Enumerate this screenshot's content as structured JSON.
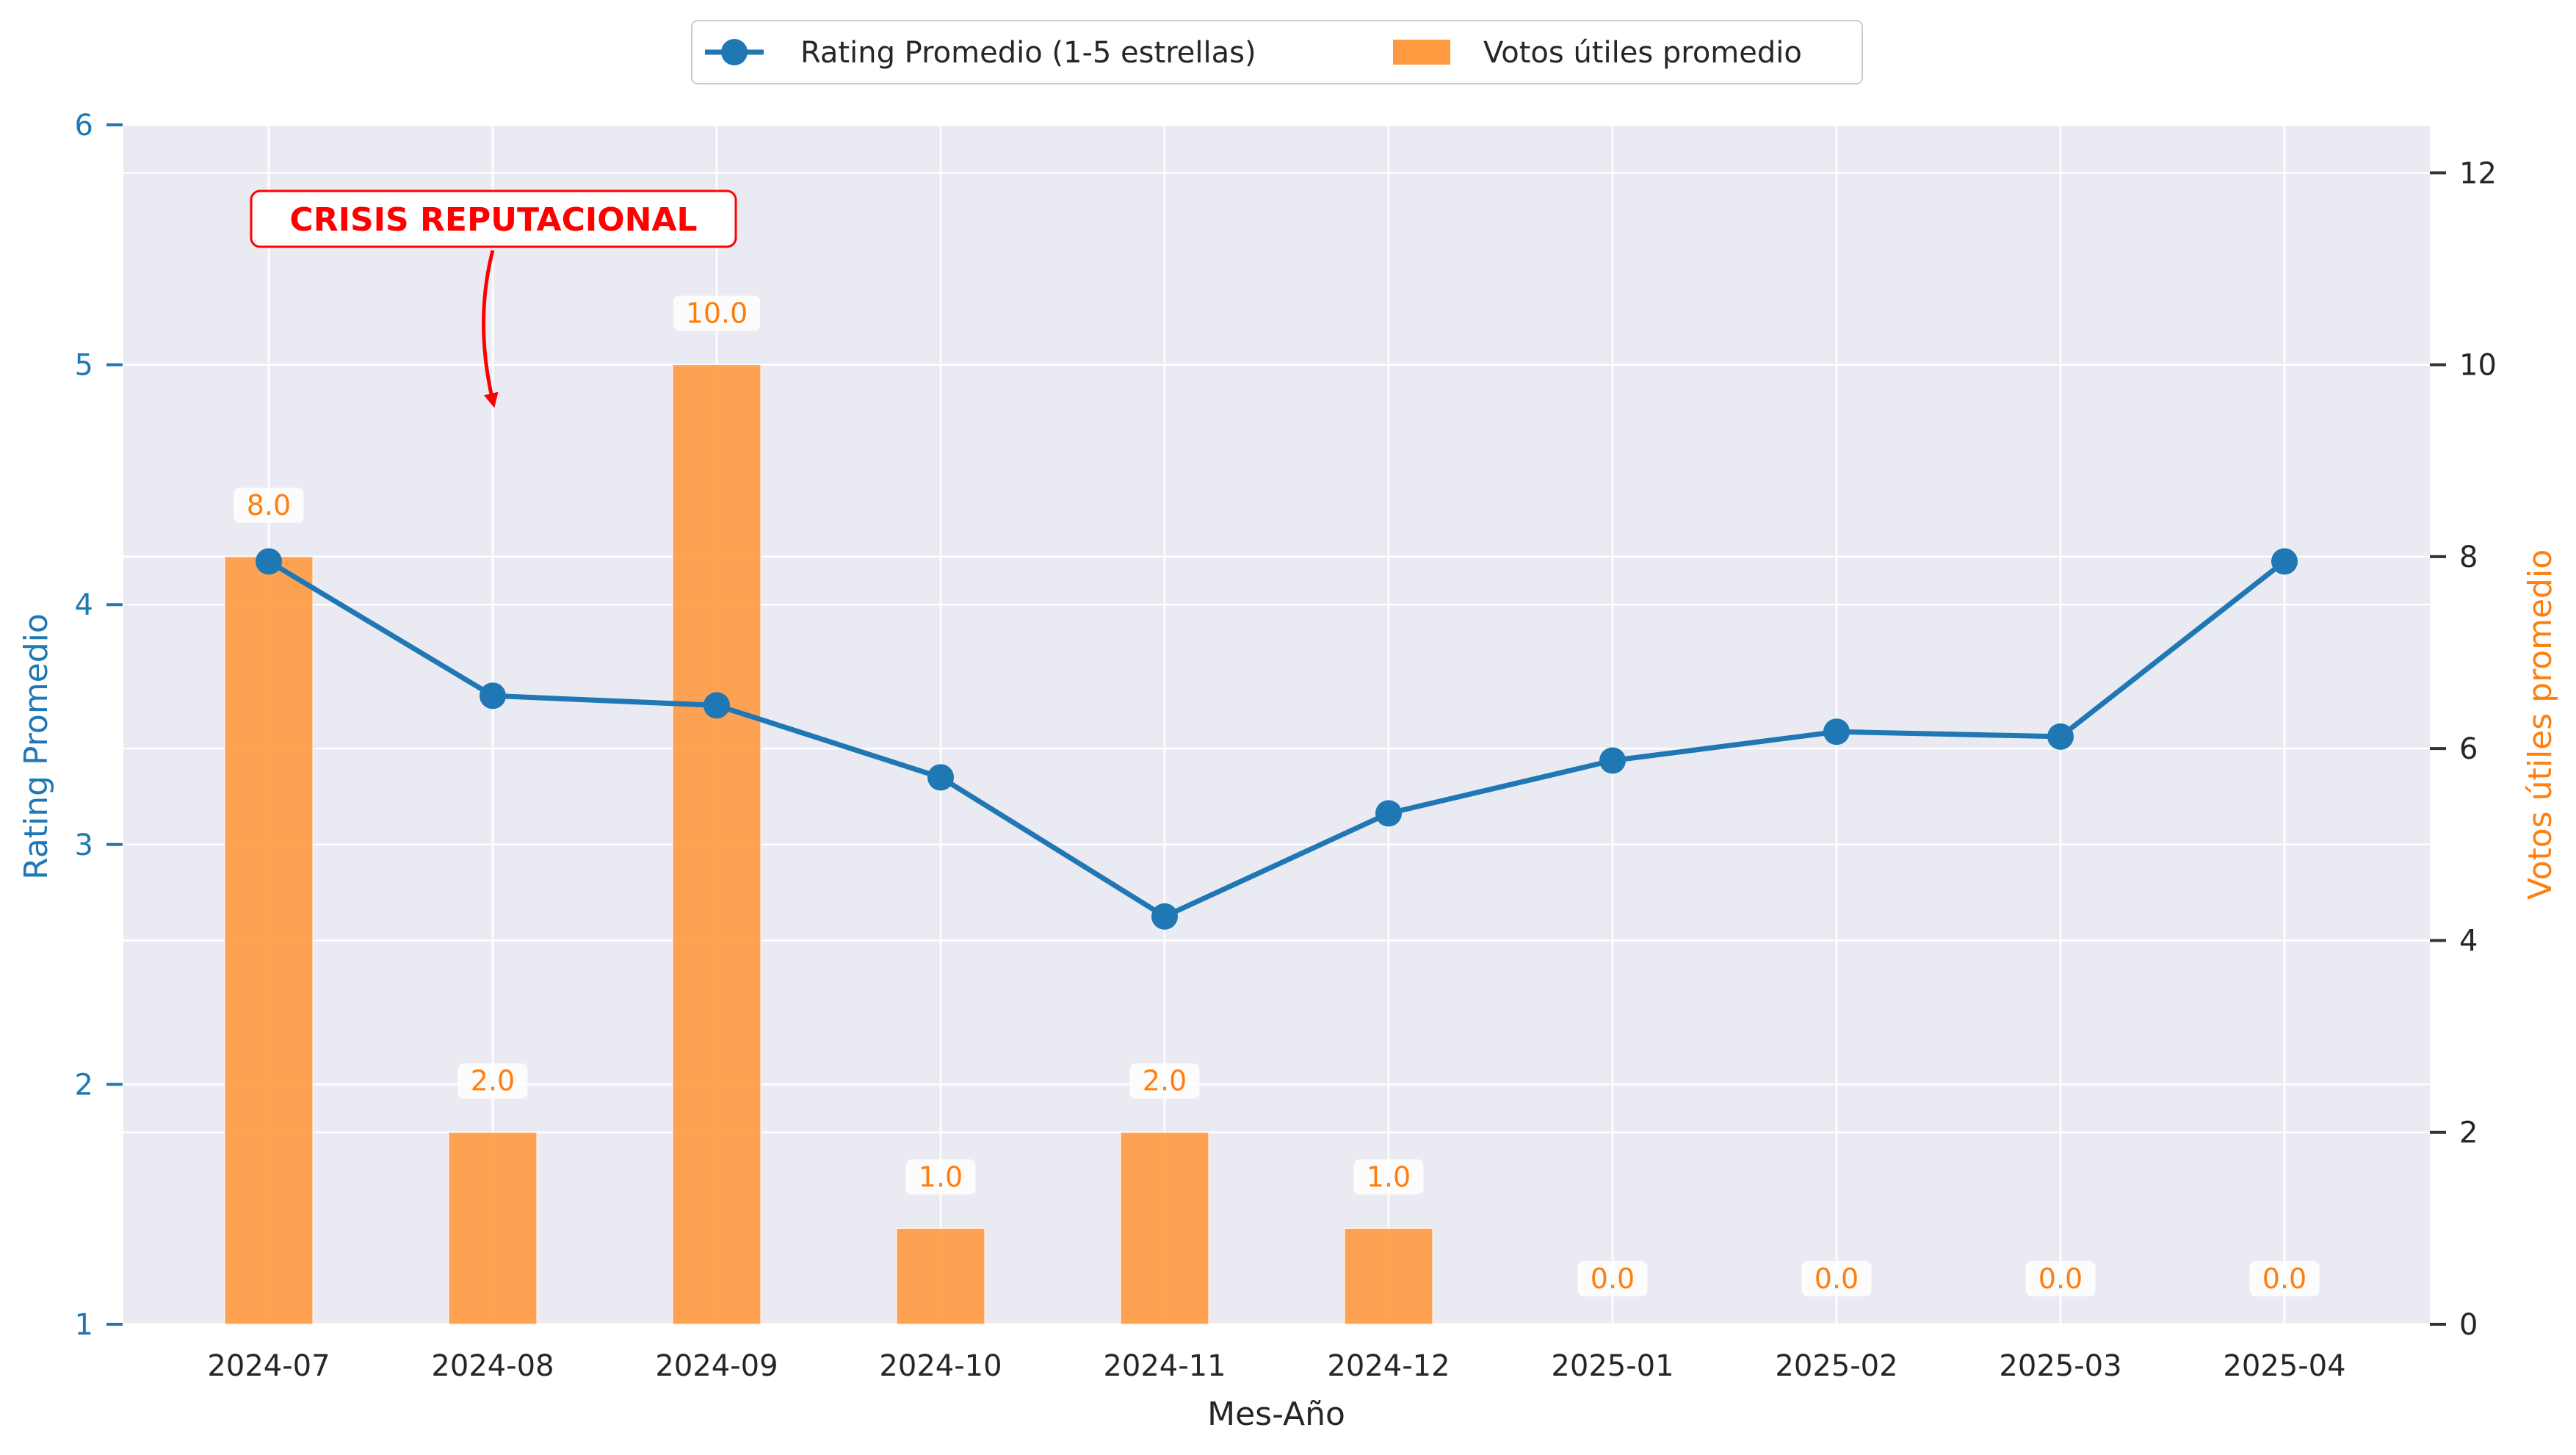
{
  "chart_data": {
    "type": "bar+line",
    "categories": [
      "2024-07",
      "2024-08",
      "2024-09",
      "2024-10",
      "2024-11",
      "2024-12",
      "2025-01",
      "2025-02",
      "2025-03",
      "2025-04"
    ],
    "xlabel": "Mes-Año",
    "y_left": {
      "label": "Rating Promedio",
      "range": [
        1,
        6
      ],
      "ticks": [
        1,
        2,
        3,
        4,
        5,
        6
      ],
      "color": "#1f77b4"
    },
    "y_right": {
      "label": "Votos útiles promedio",
      "range": [
        0,
        12.5
      ],
      "ticks": [
        0,
        2,
        4,
        6,
        8,
        10,
        12
      ],
      "color": "#ff7f0e"
    },
    "series": [
      {
        "name": "Rating Promedio (1-5 estrellas)",
        "type": "line",
        "axis": "left",
        "color": "#1f77b4",
        "values": [
          4.18,
          3.62,
          3.58,
          3.28,
          2.7,
          3.13,
          3.35,
          3.47,
          3.45,
          4.18
        ]
      },
      {
        "name": "Votos útiles promedio",
        "type": "bar",
        "axis": "right",
        "color": "#ff9a40",
        "values": [
          8.0,
          2.0,
          10.0,
          1.0,
          2.0,
          1.0,
          0.0,
          0.0,
          0.0,
          0.0
        ],
        "labels": [
          "8.0",
          "2.0",
          "10.0",
          "1.0",
          "2.0",
          "1.0",
          "0.0",
          "0.0",
          "0.0",
          "0.0"
        ]
      }
    ],
    "annotation": {
      "text": "CRISIS REPUTACIONAL",
      "color": "#ff0000",
      "target_category": "2024-08"
    },
    "legend_position": "top-center",
    "grid": true,
    "background": "#eaeaf2"
  }
}
